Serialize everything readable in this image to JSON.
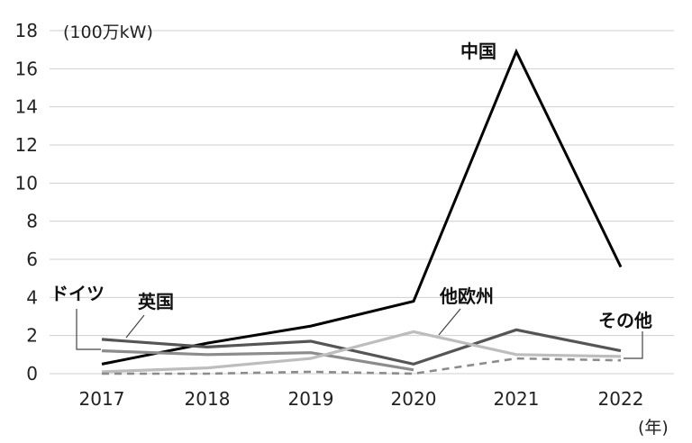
{
  "chart_data": {
    "type": "line",
    "ylabel": "(100万kW)",
    "xlabel": "(年)",
    "x": [
      "2017",
      "2018",
      "2019",
      "2020",
      "2021",
      "2022"
    ],
    "ylim": [
      0,
      18
    ],
    "yticks": [
      0,
      2,
      4,
      6,
      8,
      10,
      12,
      14,
      16,
      18
    ],
    "grid": "horizontal",
    "series": [
      {
        "name": "中国",
        "values": [
          0.5,
          1.6,
          2.5,
          3.8,
          16.9,
          5.6
        ],
        "color": "#000000",
        "dash": "solid"
      },
      {
        "name": "ドイツ",
        "values": [
          1.2,
          1.0,
          1.1,
          0.2,
          null,
          null
        ],
        "color": "#8c8c8c",
        "dash": "solid"
      },
      {
        "name": "英国",
        "values": [
          1.8,
          1.4,
          1.7,
          0.5,
          2.3,
          1.2
        ],
        "color": "#555555",
        "dash": "solid"
      },
      {
        "name": "他欧州",
        "values": [
          0.1,
          0.3,
          0.8,
          2.2,
          1.0,
          0.9
        ],
        "color": "#bdbdbd",
        "dash": "solid"
      },
      {
        "name": "その他",
        "values": [
          0.0,
          0.0,
          0.1,
          0.0,
          0.8,
          0.7
        ],
        "color": "#8c8c8c",
        "dash": "dashed"
      }
    ]
  }
}
